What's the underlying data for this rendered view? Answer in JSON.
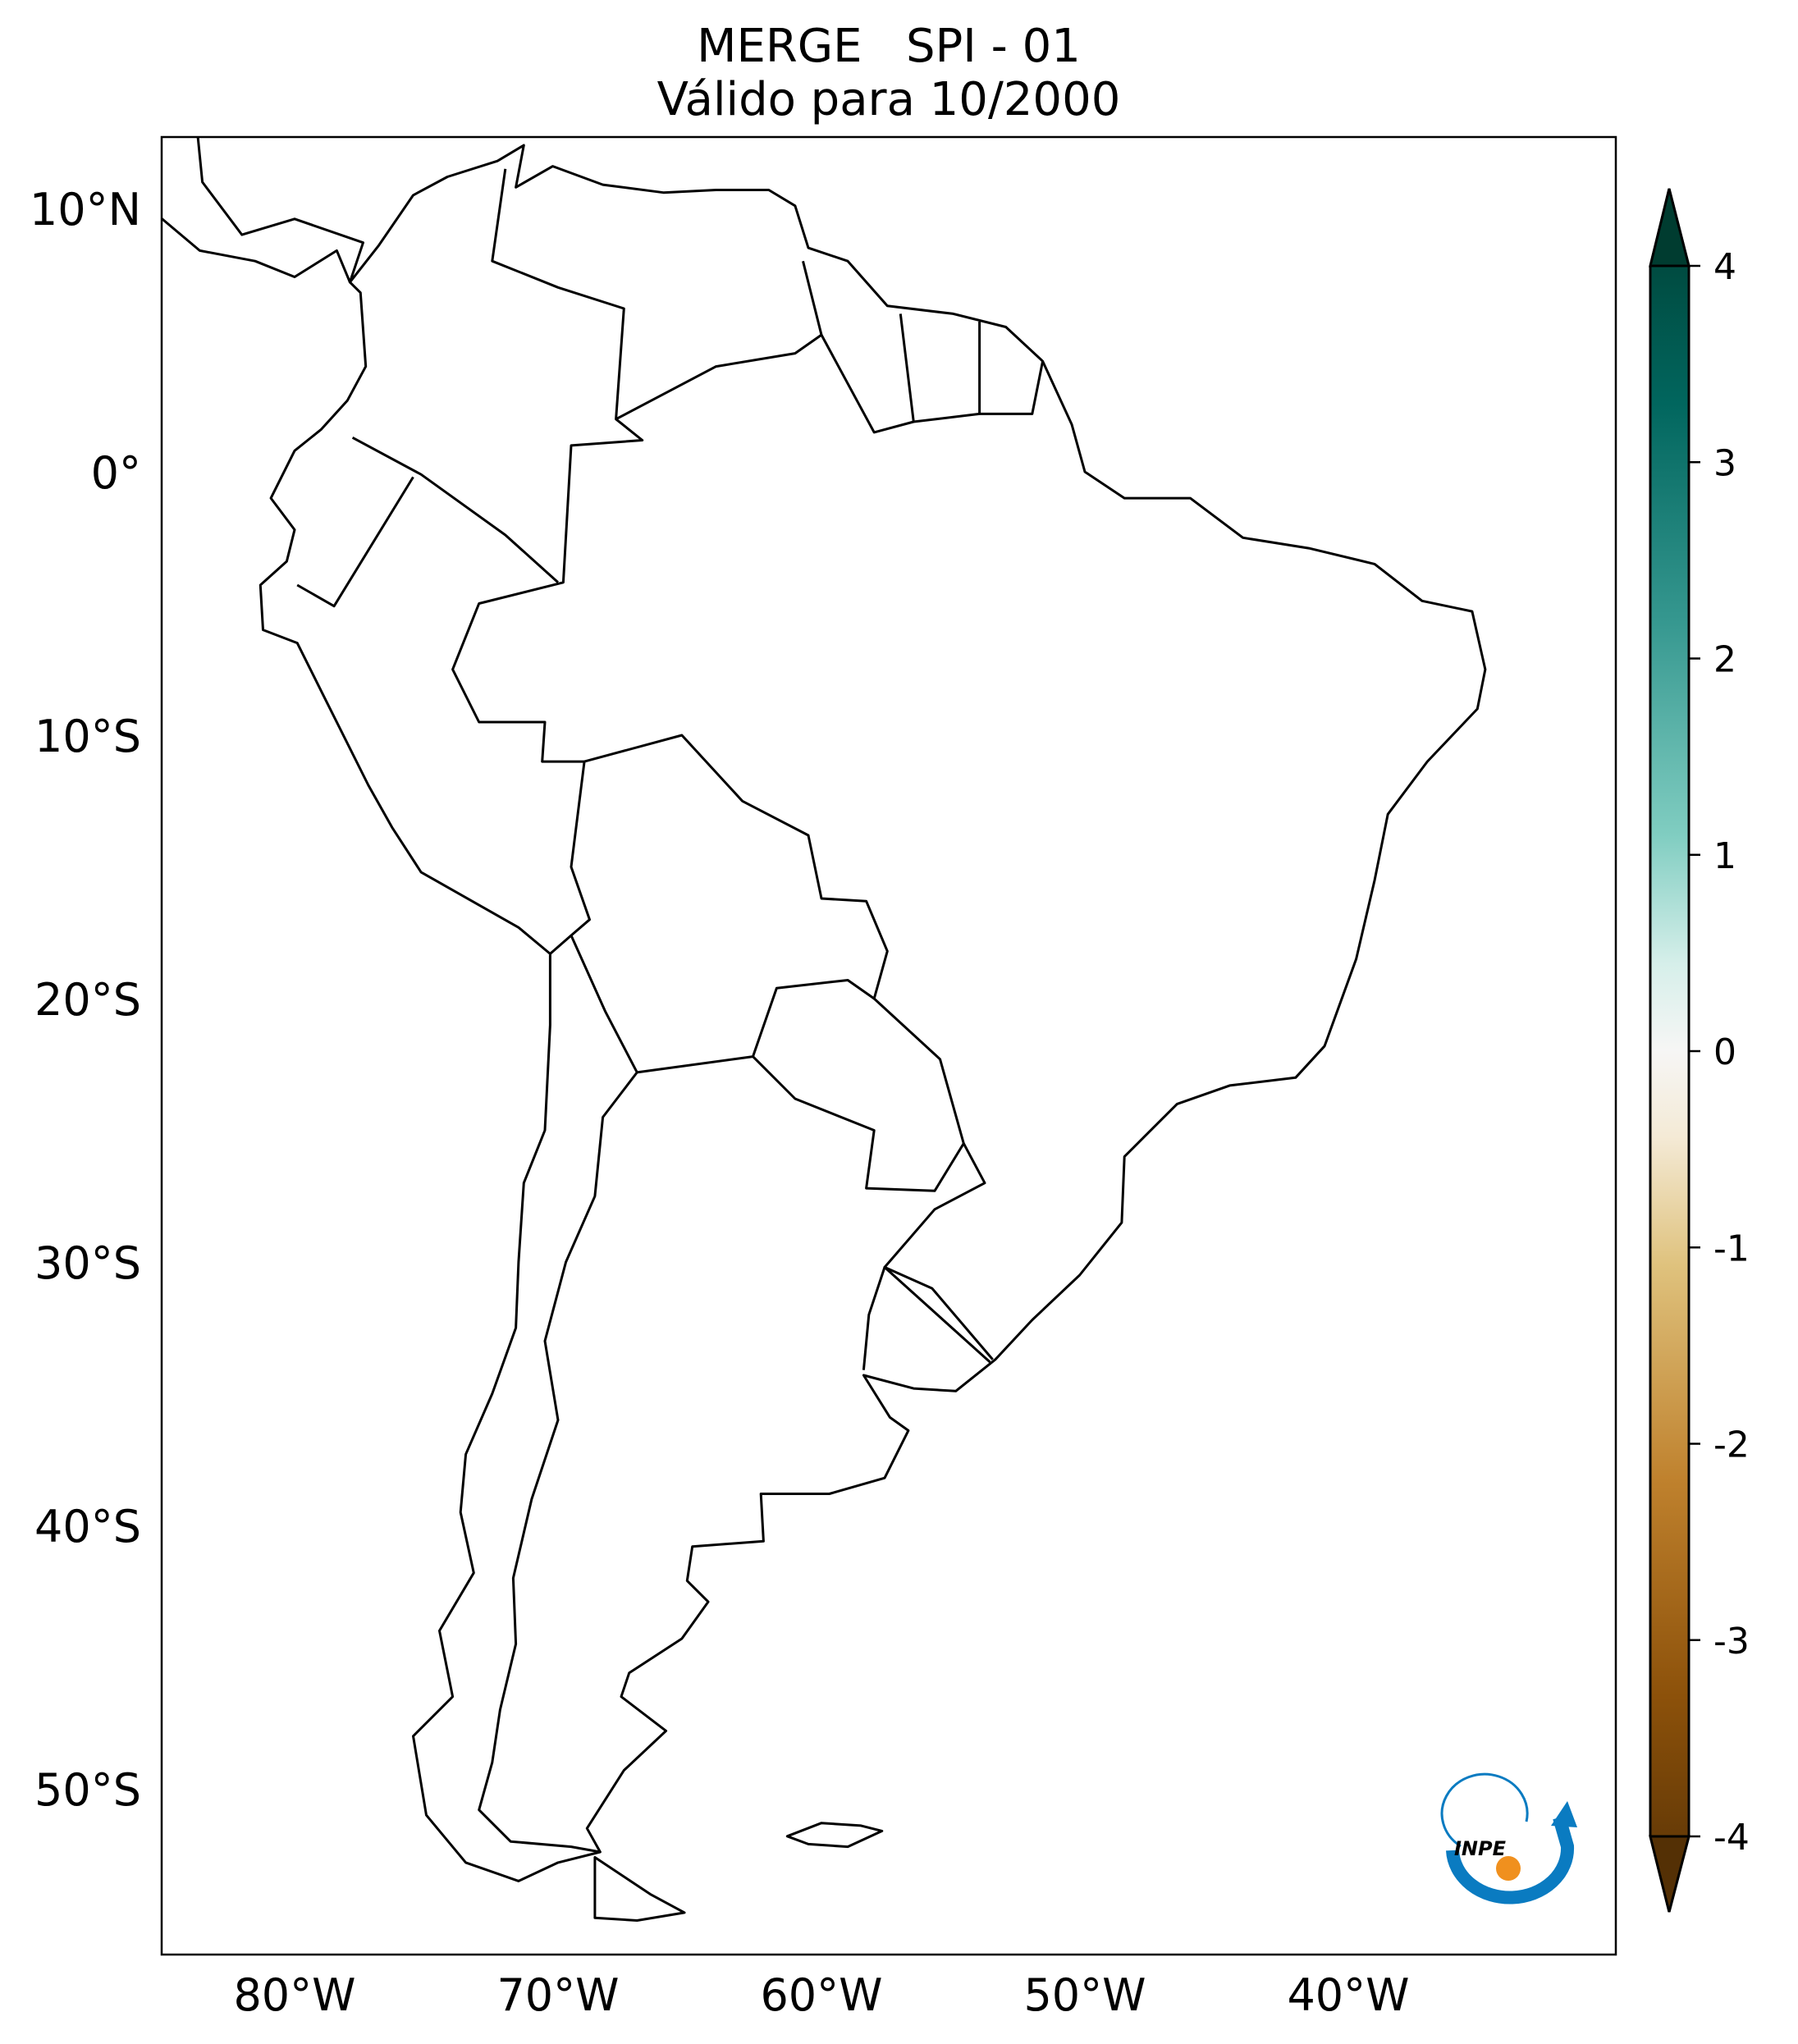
{
  "title": {
    "line1": "MERGE   SPI - 01",
    "line2": "Válido para 10/2000"
  },
  "chart_data": {
    "type": "heatmap",
    "title": "MERGE   SPI - 01\nVálido para 10/2000",
    "projection": "PlateCarree",
    "extent_lon": [
      -85,
      -30
    ],
    "extent_lat": [
      -56,
      12.5
    ],
    "lon_ticks": [
      -80,
      -70,
      -60,
      -50,
      -40
    ],
    "lon_tick_labels": [
      "80°W",
      "70°W",
      "60°W",
      "50°W",
      "40°W"
    ],
    "lat_ticks": [
      10,
      0,
      -10,
      -20,
      -30,
      -40,
      -50
    ],
    "lat_tick_labels": [
      "10°N",
      "0°",
      "10°S",
      "20°S",
      "30°S",
      "40°S",
      "50°S"
    ],
    "colorbar": {
      "colormap": "BrBG",
      "range": [
        -4,
        4
      ],
      "extend": "both",
      "ticks": [
        4,
        3,
        2,
        1,
        0,
        -1,
        -2,
        -3,
        -4
      ],
      "tick_labels": [
        "4",
        "3",
        "2",
        "1",
        "0",
        "-1",
        "-2",
        "-3",
        "-4"
      ],
      "colors": {
        "min": "#543005",
        "dry": "#bf812d",
        "neutral": "#f5f5f5",
        "wet": "#35978f",
        "max": "#003c30"
      }
    },
    "grid": false
  },
  "logo": {
    "text": "INPE",
    "colors": {
      "arc": "#0a7bc1",
      "dot": "#f0901e"
    }
  }
}
